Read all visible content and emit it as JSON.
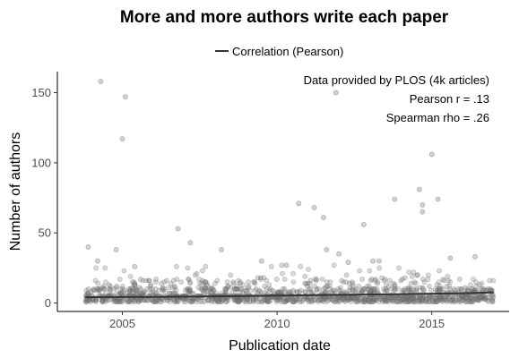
{
  "chart_data": {
    "type": "scatter",
    "title": "More and more authors write each paper",
    "xlabel": "Publication date",
    "ylabel": "Number of authors",
    "xlim": [
      2002.9,
      2017.5
    ],
    "ylim": [
      -6,
      165
    ],
    "x_ticks": [
      2005,
      2010,
      2015
    ],
    "y_ticks": [
      0,
      50,
      100,
      150
    ],
    "grid": false,
    "legend": {
      "position": "top-center",
      "entries": [
        "Correlation (Pearson)"
      ]
    },
    "annotations": [
      "Data provided by PLOS (4k articles)",
      "Pearson r = .13",
      "Spearman rho = .26"
    ],
    "point_color": "#7f7f7f",
    "trend_color": "#333333",
    "points_note_outliers": [
      [
        2004.3,
        158
      ],
      [
        2005.1,
        147
      ],
      [
        2005.0,
        117
      ],
      [
        2011.9,
        150
      ],
      [
        2015.0,
        106
      ],
      [
        2014.6,
        81
      ],
      [
        2015.2,
        74
      ],
      [
        2013.8,
        74
      ],
      [
        2014.7,
        70
      ],
      [
        2014.7,
        65
      ],
      [
        2010.7,
        71
      ],
      [
        2011.2,
        68
      ],
      [
        2011.5,
        61
      ],
      [
        2012.8,
        56
      ],
      [
        2006.8,
        53
      ],
      [
        2003.9,
        40
      ],
      [
        2004.8,
        38
      ],
      [
        2011.6,
        38
      ],
      [
        2007.2,
        43
      ],
      [
        2008.2,
        38
      ],
      [
        2012.0,
        35
      ],
      [
        2015.6,
        32
      ],
      [
        2016.4,
        33
      ],
      [
        2004.2,
        30
      ],
      [
        2005.4,
        26
      ],
      [
        2009.5,
        30
      ],
      [
        2012.3,
        29
      ],
      [
        2013.1,
        30
      ],
      [
        2010.3,
        27
      ],
      [
        2013.3,
        30
      ]
    ],
    "bulk": {
      "x_range": [
        2003.8,
        2017.0
      ],
      "y_range": [
        0,
        20
      ],
      "count": 1400
    },
    "trend": {
      "x": [
        2003.8,
        2006,
        2008,
        2010,
        2012,
        2014,
        2016,
        2017.0
      ],
      "y": [
        4.2,
        4.4,
        4.8,
        5.3,
        5.8,
        6.4,
        7.0,
        7.5
      ]
    }
  }
}
